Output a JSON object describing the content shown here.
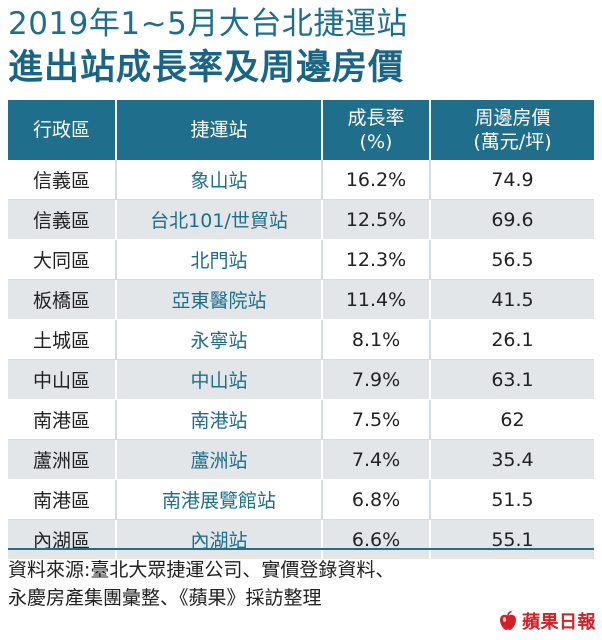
{
  "chart_data": {
    "type": "table",
    "title": "2019年1~5月大台北捷運站",
    "subtitle": "進出站成長率及周邊房價",
    "columns": [
      "行政區",
      "捷運站",
      "成長率\n(%)",
      "周邊房價\n(萬元/坪)"
    ],
    "rows": [
      [
        "信義區",
        "象山站",
        "16.2%",
        "74.9"
      ],
      [
        "信義區",
        "台北101/世貿站",
        "12.5%",
        "69.6"
      ],
      [
        "大同區",
        "北門站",
        "12.3%",
        "56.5"
      ],
      [
        "板橋區",
        "亞東醫院站",
        "11.4%",
        "41.5"
      ],
      [
        "土城區",
        "永寧站",
        "8.1%",
        "26.1"
      ],
      [
        "中山區",
        "中山站",
        "7.9%",
        "63.1"
      ],
      [
        "南港區",
        "南港站",
        "7.5%",
        "62"
      ],
      [
        "蘆洲區",
        "蘆洲站",
        "7.4%",
        "35.4"
      ],
      [
        "南港區",
        "南港展覽館站",
        "6.8%",
        "51.5"
      ],
      [
        "內湖區",
        "內湖站",
        "6.6%",
        "55.1"
      ]
    ]
  },
  "source": {
    "line1": "資料來源:臺北大眾捷運公司、實價登錄資料、",
    "line2": "永慶房產集團彙整、《蘋果》採訪整理"
  },
  "brand": {
    "name": "蘋果日報",
    "icon": "apple-logo-icon"
  },
  "colors": {
    "header": "#1f6e8c",
    "station_text": "#1f6e8c",
    "stripe": "#e3e6e9",
    "brand": "#d62027"
  }
}
